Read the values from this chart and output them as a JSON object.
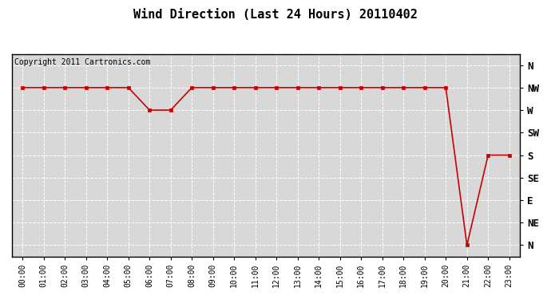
{
  "title": "Wind Direction (Last 24 Hours) 20110402",
  "copyright_text": "Copyright 2011 Cartronics.com",
  "x_labels": [
    "00:00",
    "01:00",
    "02:00",
    "03:00",
    "04:00",
    "05:00",
    "06:00",
    "07:00",
    "08:00",
    "09:00",
    "10:00",
    "11:00",
    "12:00",
    "13:00",
    "14:00",
    "15:00",
    "16:00",
    "17:00",
    "18:00",
    "19:00",
    "20:00",
    "21:00",
    "22:00",
    "23:00"
  ],
  "y_tick_labels": [
    "N",
    "NE",
    "E",
    "SE",
    "S",
    "SW",
    "W",
    "NW",
    "N"
  ],
  "y_tick_values": [
    0,
    1,
    2,
    3,
    4,
    5,
    6,
    7,
    8
  ],
  "hours": [
    0,
    1,
    2,
    3,
    4,
    5,
    6,
    7,
    8,
    9,
    10,
    11,
    12,
    13,
    14,
    15,
    16,
    17,
    18,
    19,
    20,
    21,
    22,
    23
  ],
  "wind_values": [
    7,
    7,
    7,
    7,
    7,
    7,
    6,
    6,
    7,
    7,
    7,
    7,
    7,
    7,
    7,
    7,
    7,
    7,
    7,
    7,
    7,
    0,
    4,
    4
  ],
  "line_color": "#cc0000",
  "marker": "s",
  "marker_size": 3,
  "bg_color": "#ffffff",
  "plot_bg_color": "#d8d8d8",
  "grid_color": "#ffffff",
  "title_fontsize": 11,
  "copyright_fontsize": 7,
  "tick_fontsize": 7,
  "y_label_fontsize": 9
}
